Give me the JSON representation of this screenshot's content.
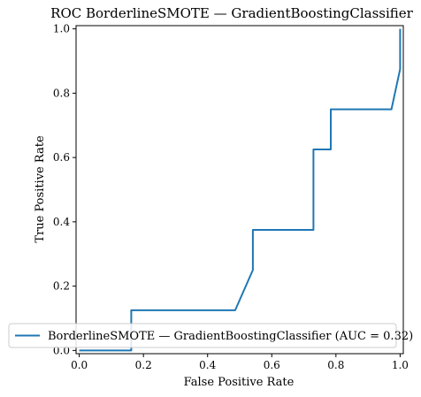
{
  "chart_data": {
    "type": "line",
    "title": "ROC BorderlineSMOTE — GradientBoostingClassifier",
    "xlabel": "False Positive Rate",
    "ylabel": "True Positive Rate",
    "xlim": [
      -0.01,
      1.01
    ],
    "ylim": [
      -0.01,
      1.01
    ],
    "xticks": [
      "0.0",
      "0.2",
      "0.4",
      "0.6",
      "0.8",
      "1.0"
    ],
    "yticks": [
      "0.0",
      "0.2",
      "0.4",
      "0.6",
      "0.8",
      "1.0"
    ],
    "grid": false,
    "legend_position": "lower-right",
    "series": [
      {
        "name": "BorderlineSMOTE — GradientBoostingClassifier (AUC = 0.32)",
        "color": "#1f77b4",
        "x": [
          0.0,
          0.0,
          0.162,
          0.162,
          0.486,
          0.541,
          0.541,
          0.73,
          0.73,
          0.784,
          0.784,
          0.973,
          1.0,
          1.0
        ],
        "y": [
          0.0,
          0.0,
          0.0,
          0.125,
          0.125,
          0.25,
          0.375,
          0.375,
          0.625,
          0.625,
          0.75,
          0.75,
          0.875,
          1.0
        ]
      }
    ]
  }
}
